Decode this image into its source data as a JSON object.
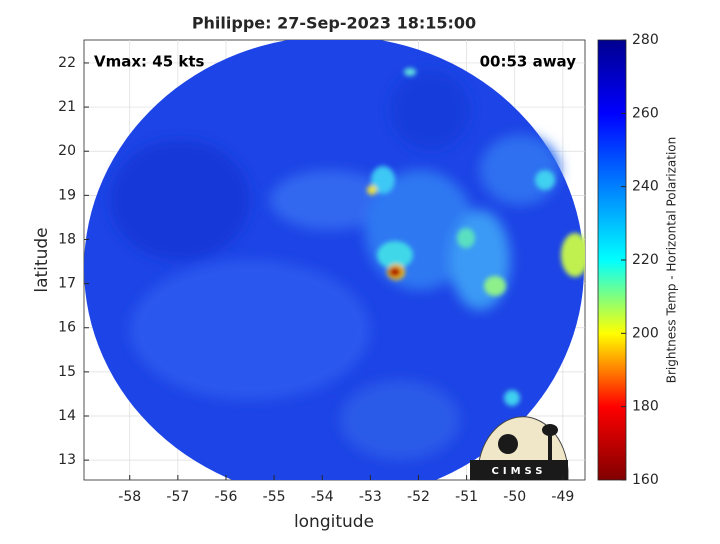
{
  "chart_data": {
    "type": "image-map",
    "title": "Philippe: 27-Sep-2023 18:15:00",
    "annotations": [
      "Vmax: 45 kts",
      "00:53 away"
    ],
    "xlabel": "longitude",
    "ylabel": "latitude",
    "xlim": [
      -58.95,
      -48.54
    ],
    "xticks": [
      -58,
      -57,
      -56,
      -55,
      -54,
      -53,
      -52,
      -51,
      -50,
      -49
    ],
    "ylim": [
      12.55,
      22.52
    ],
    "yticks": [
      13,
      14,
      15,
      16,
      17,
      18,
      19,
      20,
      21,
      22
    ],
    "grid": true,
    "colorbar": {
      "label": "Brightness Temp - Horizontal Polarization",
      "colormap": "jet",
      "lim": [
        160,
        280
      ],
      "ticks": [
        160,
        180,
        200,
        220,
        240,
        260,
        280
      ]
    },
    "logo": "CIMSS"
  }
}
